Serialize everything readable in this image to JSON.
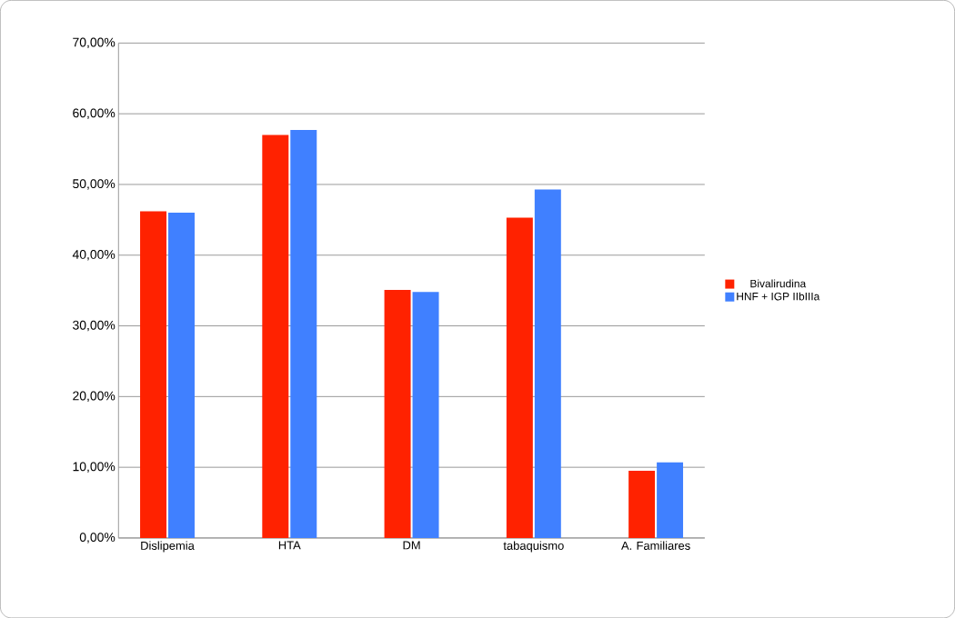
{
  "chart_data": {
    "type": "bar",
    "categories": [
      "Dislipemia",
      "HTA",
      "DM",
      "tabaquismo",
      "A. Familiares"
    ],
    "series": [
      {
        "name": "Bivalirudina",
        "color": "#ff2200",
        "values": [
          46.2,
          57.0,
          35.1,
          45.3,
          9.5
        ]
      },
      {
        "name": "HNF + IGP IIbIIIa",
        "color": "#4080ff",
        "values": [
          46.0,
          57.7,
          34.8,
          49.3,
          10.7
        ]
      }
    ],
    "ylim": [
      0,
      70
    ],
    "yticks": [
      {
        "value": 0,
        "label": "0,00%"
      },
      {
        "value": 10,
        "label": "10,00%"
      },
      {
        "value": 20,
        "label": "20,00%"
      },
      {
        "value": 30,
        "label": "30,00%"
      },
      {
        "value": 40,
        "label": "40,00%"
      },
      {
        "value": 50,
        "label": "50,00%"
      },
      {
        "value": 60,
        "label": "60,00%"
      },
      {
        "value": 70,
        "label": "70,00%"
      }
    ],
    "grid": "y",
    "legend": "right"
  }
}
